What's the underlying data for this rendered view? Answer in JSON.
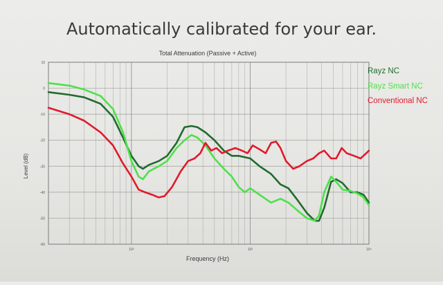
{
  "slide": {
    "title": "Automatically calibrated for your ear."
  },
  "colors": {
    "rayz_nc": "#1f6b2e",
    "rayz_smart_nc": "#4ee04a",
    "conventional_nc": "#e01a2b",
    "grid": "#8a8a8a"
  },
  "chart_data": {
    "type": "line",
    "title": "Total Attenuation (Passive + Active)",
    "xlabel": "Frequency (Hz)",
    "ylabel": "Level (dB)",
    "x_scale": "log",
    "xlim": [
      20,
      10000
    ],
    "ylim": [
      -60,
      10
    ],
    "x_ticks": [
      {
        "value": 100,
        "label": "10²"
      },
      {
        "value": 1000,
        "label": "10³"
      },
      {
        "value": 10000,
        "label": "10⁴"
      }
    ],
    "y_ticks": [
      {
        "value": 10,
        "label": "10"
      },
      {
        "value": 0,
        "label": "0"
      },
      {
        "value": -10,
        "label": "-10"
      },
      {
        "value": -20,
        "label": "-20"
      },
      {
        "value": -30,
        "label": "-30"
      },
      {
        "value": -40,
        "label": "-40"
      },
      {
        "value": -50,
        "label": "-50"
      },
      {
        "value": -60,
        "label": "-60"
      }
    ],
    "grid": true,
    "legend_position": "right",
    "series": [
      {
        "name": "Rayz NC",
        "color": "#1f6b2e",
        "points": [
          [
            20,
            -1.5
          ],
          [
            30,
            -2.5
          ],
          [
            40,
            -3.5
          ],
          [
            55,
            -6
          ],
          [
            70,
            -11
          ],
          [
            85,
            -19
          ],
          [
            100,
            -26
          ],
          [
            115,
            -30
          ],
          [
            125,
            -31
          ],
          [
            140,
            -29.5
          ],
          [
            170,
            -28
          ],
          [
            200,
            -26
          ],
          [
            240,
            -21
          ],
          [
            280,
            -15
          ],
          [
            320,
            -14.5
          ],
          [
            360,
            -15
          ],
          [
            420,
            -17
          ],
          [
            500,
            -20
          ],
          [
            600,
            -24
          ],
          [
            700,
            -26
          ],
          [
            800,
            -26
          ],
          [
            1000,
            -27
          ],
          [
            1200,
            -30
          ],
          [
            1500,
            -33
          ],
          [
            1800,
            -37
          ],
          [
            2100,
            -38.5
          ],
          [
            2500,
            -43
          ],
          [
            3000,
            -48
          ],
          [
            3500,
            -51
          ],
          [
            3800,
            -51
          ],
          [
            4200,
            -46
          ],
          [
            4800,
            -36
          ],
          [
            5300,
            -35
          ],
          [
            6000,
            -36.5
          ],
          [
            7000,
            -40
          ],
          [
            8000,
            -40
          ],
          [
            9000,
            -41
          ],
          [
            10000,
            -44
          ]
        ]
      },
      {
        "name": "Rayz Smart NC",
        "color": "#4ee04a",
        "points": [
          [
            20,
            2
          ],
          [
            30,
            1
          ],
          [
            40,
            -0.5
          ],
          [
            55,
            -3
          ],
          [
            70,
            -8
          ],
          [
            85,
            -17
          ],
          [
            100,
            -28
          ],
          [
            115,
            -34
          ],
          [
            125,
            -35
          ],
          [
            140,
            -32
          ],
          [
            170,
            -30
          ],
          [
            200,
            -28
          ],
          [
            240,
            -23
          ],
          [
            280,
            -20
          ],
          [
            320,
            -18
          ],
          [
            360,
            -19
          ],
          [
            420,
            -22
          ],
          [
            500,
            -27
          ],
          [
            600,
            -31
          ],
          [
            700,
            -34
          ],
          [
            800,
            -38
          ],
          [
            900,
            -40
          ],
          [
            1000,
            -38.5
          ],
          [
            1200,
            -41
          ],
          [
            1500,
            -44
          ],
          [
            1800,
            -42.5
          ],
          [
            2100,
            -44
          ],
          [
            2500,
            -47
          ],
          [
            3000,
            -50
          ],
          [
            3500,
            -51
          ],
          [
            3800,
            -49
          ],
          [
            4200,
            -40
          ],
          [
            4800,
            -34
          ],
          [
            5300,
            -36
          ],
          [
            6000,
            -39
          ],
          [
            7000,
            -39.5
          ],
          [
            8000,
            -40.5
          ],
          [
            9000,
            -42
          ],
          [
            10000,
            -45
          ]
        ]
      },
      {
        "name": "Conventional NC",
        "color": "#e01a2b",
        "points": [
          [
            20,
            -7.5
          ],
          [
            30,
            -10
          ],
          [
            40,
            -12.5
          ],
          [
            55,
            -17
          ],
          [
            70,
            -22
          ],
          [
            85,
            -29
          ],
          [
            100,
            -34
          ],
          [
            115,
            -39
          ],
          [
            130,
            -40
          ],
          [
            150,
            -41
          ],
          [
            170,
            -42
          ],
          [
            190,
            -41.5
          ],
          [
            220,
            -38
          ],
          [
            260,
            -32
          ],
          [
            300,
            -28
          ],
          [
            340,
            -27
          ],
          [
            380,
            -25
          ],
          [
            420,
            -21
          ],
          [
            470,
            -24
          ],
          [
            520,
            -23
          ],
          [
            580,
            -25
          ],
          [
            650,
            -24
          ],
          [
            750,
            -23
          ],
          [
            850,
            -24
          ],
          [
            950,
            -25
          ],
          [
            1050,
            -22
          ],
          [
            1200,
            -23.5
          ],
          [
            1350,
            -25
          ],
          [
            1500,
            -21
          ],
          [
            1650,
            -20.5
          ],
          [
            1800,
            -23
          ],
          [
            2000,
            -28
          ],
          [
            2300,
            -31
          ],
          [
            2600,
            -30
          ],
          [
            3000,
            -28
          ],
          [
            3400,
            -27
          ],
          [
            3800,
            -25
          ],
          [
            4200,
            -24
          ],
          [
            4800,
            -27
          ],
          [
            5300,
            -27
          ],
          [
            5900,
            -23
          ],
          [
            6500,
            -25
          ],
          [
            7500,
            -26
          ],
          [
            8500,
            -27
          ],
          [
            9500,
            -25
          ],
          [
            10000,
            -24
          ]
        ]
      }
    ]
  }
}
